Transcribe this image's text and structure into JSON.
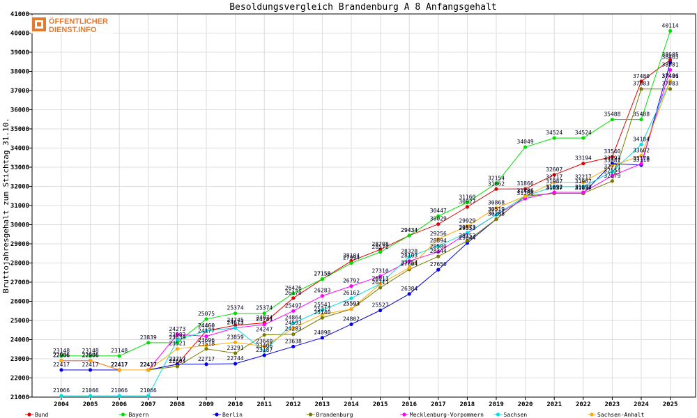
{
  "logo": {
    "line1": "ÖFFENTLICHER",
    "line2": "DIENST.INFO"
  },
  "chart_data": {
    "type": "line",
    "title": "Besoldungsvergleich Brandenburg A 8 Anfangsgehalt",
    "xlabel": "",
    "ylabel": "Bruttojahresgehalt zum Stichtag 31.10.",
    "categories": [
      "2004",
      "2005",
      "2006",
      "2007",
      "2008",
      "2009",
      "2010",
      "2011",
      "2012",
      "2013",
      "2014",
      "2015",
      "2016",
      "2017",
      "2018",
      "2019",
      "2020",
      "2021",
      "2022",
      "2023",
      "2024",
      "2025"
    ],
    "ylim": [
      21000,
      41000
    ],
    "yticks": [
      21000,
      22000,
      23000,
      24000,
      25000,
      26000,
      27000,
      28000,
      29000,
      30000,
      31000,
      32000,
      33000,
      34000,
      35000,
      36000,
      37000,
      38000,
      39000,
      40000,
      41000
    ],
    "grid": true,
    "legend_position": "bottom",
    "series": [
      {
        "name": "Bund",
        "color": "#e00000",
        "values": [
          22906,
          22906,
          22417,
          22417,
          22717,
          24460,
          24745,
          24874,
          26170,
          27158,
          28104,
          28708,
          29434,
          30029,
          30927,
          31862,
          31866,
          32607,
          33194,
          33540,
          37480,
          38605
        ]
      },
      {
        "name": "Bayern",
        "color": "#00e000",
        "values": [
          23148,
          23148,
          23148,
          23839,
          23839,
          25075,
          25374,
          25374,
          26426,
          27158,
          27994,
          28572,
          29434,
          30447,
          31160,
          32154,
          34049,
          34524,
          34524,
          35488,
          35488,
          40114
        ]
      },
      {
        "name": "Berlin",
        "color": "#0000e0",
        "values": [
          22417,
          22417,
          22417,
          22417,
          22717,
          22717,
          22744,
          23187,
          23638,
          24098,
          24802,
          25527,
          26384,
          27650,
          29044,
          30288,
          31486,
          31637,
          31637,
          33193,
          33110,
          38465
        ]
      },
      {
        "name": "Brandenburg",
        "color": "#7a7a00",
        "values": [
          22906,
          22906,
          22417,
          22417,
          22604,
          23518,
          23291,
          24247,
          24283,
          25140,
          25593,
          26711,
          27664,
          28344,
          29153,
          30288,
          31486,
          31637,
          31637,
          32279,
          37083,
          37083
        ]
      },
      {
        "name": "Mecklenburg-Vorpommern",
        "color": "#ff00ff",
        "values": [
          22906,
          22906,
          22417,
          22417,
          24273,
          24177,
          24613,
          24784,
          25497,
          26283,
          26792,
          27310,
          28103,
          28580,
          29553,
          30519,
          31366,
          31692,
          31692,
          32554,
          33179,
          38081
        ]
      },
      {
        "name": "Sachsen",
        "color": "#00e0e0",
        "values": [
          21066,
          21066,
          21066,
          21066,
          23982,
          24460,
          24613,
          23406,
          24864,
          25541,
          26162,
          26911,
          28328,
          28894,
          29573,
          30519,
          31486,
          31987,
          31987,
          32771,
          34184,
          37481
        ]
      },
      {
        "name": "Sachsen-Anhalt",
        "color": "#ffaa00",
        "values": [
          22906,
          22906,
          22417,
          22417,
          23521,
          23696,
          23859,
          23640,
          24593,
          25317,
          25593,
          26911,
          27754,
          29256,
          29929,
          30868,
          31486,
          32217,
          32217,
          33081,
          33602,
          37496
        ]
      }
    ]
  }
}
